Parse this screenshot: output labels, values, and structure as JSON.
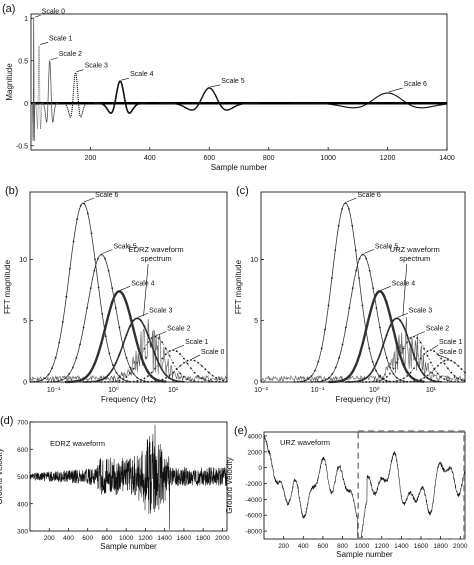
{
  "chart_data": [
    {
      "id": "a",
      "panel_label": "(a)",
      "type": "line",
      "xlabel": "Sample number",
      "ylabel": "Magnitude",
      "xlim": [
        0,
        1400
      ],
      "ylim": [
        -0.55,
        1.05
      ],
      "xticks": [
        200,
        400,
        600,
        800,
        1000,
        1200,
        1400
      ],
      "yticks": [
        -0.5,
        0,
        0.5,
        1
      ],
      "series": [
        {
          "name": "Scale 0",
          "center": 9,
          "amp": 1.0,
          "width": 1.2
        },
        {
          "name": "Scale 1",
          "center": 27,
          "amp": 0.68,
          "width": 3
        },
        {
          "name": "Scale 2",
          "center": 63,
          "amp": 0.5,
          "width": 6
        },
        {
          "name": "Scale 3",
          "center": 150,
          "amp": 0.36,
          "width": 10
        },
        {
          "name": "Scale 4",
          "center": 300,
          "amp": 0.26,
          "width": 18
        },
        {
          "name": "Scale 5",
          "center": 600,
          "amp": 0.18,
          "width": 34
        },
        {
          "name": "Scale 6",
          "center": 1200,
          "amp": 0.12,
          "width": 66
        }
      ]
    },
    {
      "id": "b",
      "panel_label": "(b)",
      "type": "line",
      "xlabel": "Frequency (Hz)",
      "ylabel": "FFT magnitude",
      "xscale": "log",
      "xlim": [
        0.04,
        80
      ],
      "ylim": [
        0,
        15.5
      ],
      "yticks": [
        0,
        5,
        10
      ],
      "xtick_labels": [
        "10⁻¹",
        "10⁰",
        "10¹"
      ],
      "annotation": [
        "EDRZ waveform",
        "spectrum"
      ],
      "series": [
        {
          "name": "Scale 6",
          "peak_freq": 0.31,
          "peak": 14.6
        },
        {
          "name": "Scale 5",
          "peak_freq": 0.63,
          "peak": 10.4
        },
        {
          "name": "Scale 4",
          "peak_freq": 1.25,
          "peak": 7.4
        },
        {
          "name": "Scale 3",
          "peak_freq": 2.5,
          "peak": 5.2
        },
        {
          "name": "Scale 2",
          "peak_freq": 5,
          "peak": 3.7
        },
        {
          "name": "Scale 1",
          "peak_freq": 10,
          "peak": 2.6
        },
        {
          "name": "Scale 0",
          "peak_freq": 20,
          "peak": 1.8
        }
      ]
    },
    {
      "id": "c",
      "panel_label": "(c)",
      "type": "line",
      "xlabel": "Frequency (Hz)",
      "ylabel": "FFT magnitude",
      "xscale": "log",
      "xlim": [
        0.01,
        40
      ],
      "ylim": [
        0,
        15.5
      ],
      "yticks": [
        0,
        5,
        10
      ],
      "xtick_labels": [
        "10⁻²",
        "10⁻¹",
        "10⁰",
        "10¹"
      ],
      "annotation": [
        "URZ waveform",
        "spectrum"
      ],
      "series": [
        {
          "name": "Scale 6",
          "peak_freq": 0.31,
          "peak": 14.6
        },
        {
          "name": "Scale 5",
          "peak_freq": 0.63,
          "peak": 10.4
        },
        {
          "name": "Scale 4",
          "peak_freq": 1.25,
          "peak": 7.4
        },
        {
          "name": "Scale 3",
          "peak_freq": 2.5,
          "peak": 5.2
        },
        {
          "name": "Scale 2",
          "peak_freq": 5,
          "peak": 3.7
        },
        {
          "name": "Scale 1",
          "peak_freq": 10,
          "peak": 2.6
        },
        {
          "name": "Scale 0",
          "peak_freq": 20,
          "peak": 1.8
        }
      ]
    },
    {
      "id": "d",
      "panel_label": "(d)",
      "type": "line",
      "xlabel": "Sample number",
      "ylabel": "Ground Velocity",
      "xlim": [
        0,
        2048
      ],
      "ylim": [
        300,
        700
      ],
      "xticks": [
        200,
        400,
        600,
        800,
        1000,
        1200,
        1400,
        1600,
        1800,
        2000
      ],
      "yticks": [
        300,
        400,
        500,
        600,
        700
      ],
      "series_label": "EDRZ waveform"
    },
    {
      "id": "e",
      "panel_label": "(e)",
      "type": "line",
      "xlabel": "Sample number",
      "ylabel": "Ground Velocity",
      "xlim": [
        0,
        2048
      ],
      "ylim": [
        -9000,
        4500
      ],
      "xticks": [
        200,
        400,
        600,
        800,
        1000,
        1200,
        1400,
        1600,
        1800,
        2000
      ],
      "yticks": [
        -8000,
        -6000,
        -4000,
        -2000,
        0,
        2000,
        4000
      ],
      "series_label": "URZ waveform",
      "highlight_x_range": [
        960,
        2048
      ]
    }
  ]
}
